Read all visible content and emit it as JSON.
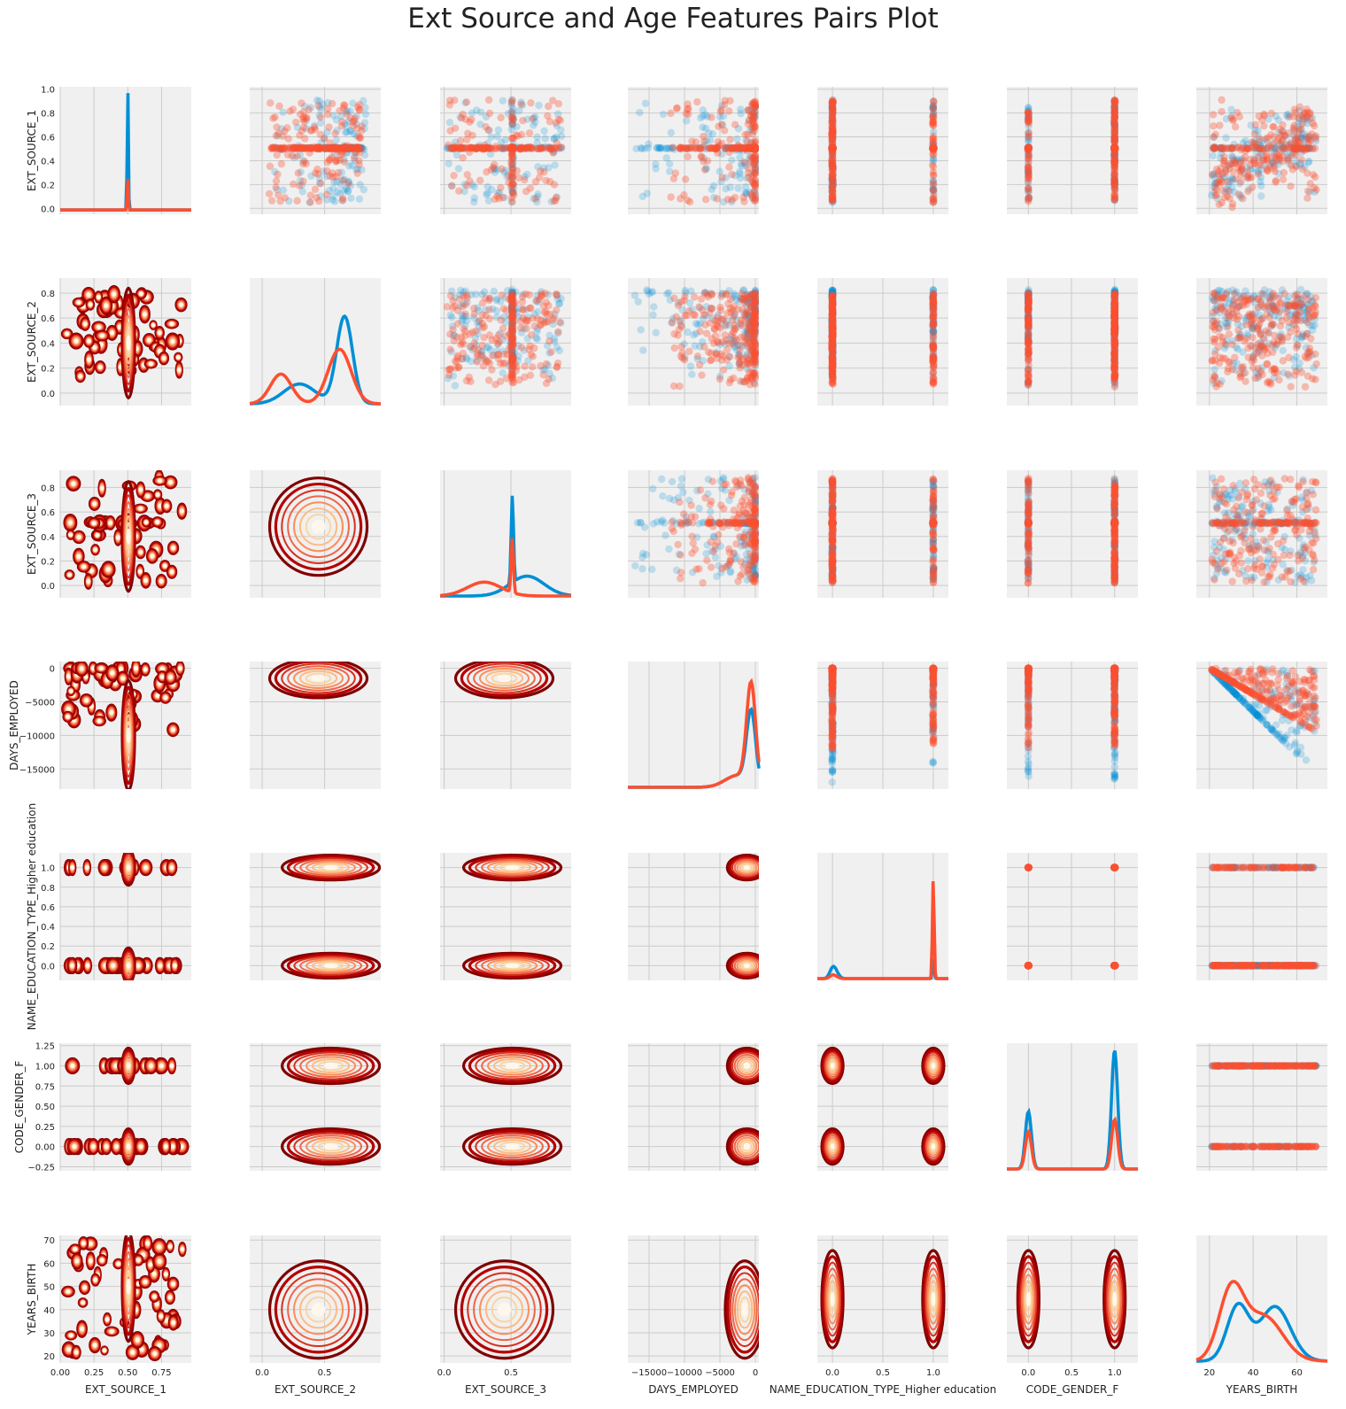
{
  "chart_data": {
    "type": "pairs",
    "title": "Ext Source and Age Features Pairs Plot",
    "variables": [
      "EXT_SOURCE_1",
      "EXT_SOURCE_2",
      "EXT_SOURCE_3",
      "DAYS_EMPLOYED",
      "NAME_EDUCATION_TYPE_Higher education",
      "CODE_GENDER_F",
      "YEARS_BIRTH"
    ],
    "upper": "scatter",
    "diagonal": "kde",
    "lower": "kde2d",
    "series": [
      {
        "name": "",
        "color": "#008fd5"
      },
      {
        "name": "",
        "color": "#fc4f30"
      }
    ],
    "lower_colormap": [
      "#7f0000",
      "#b30000",
      "#d7301f",
      "#ef6548",
      "#fc8d59",
      "#fdbb84",
      "#fdd49e",
      "#fff7ec"
    ],
    "y_axes": [
      {
        "var": "EXT_SOURCE_1",
        "range": [
          -0.05,
          1.02
        ],
        "ticks": [
          {
            "v": 0.0,
            "label": "0.0"
          },
          {
            "v": 0.2,
            "label": "0.2"
          },
          {
            "v": 0.4,
            "label": "0.4"
          },
          {
            "v": 0.6,
            "label": "0.6"
          },
          {
            "v": 0.8,
            "label": "0.8"
          },
          {
            "v": 1.0,
            "label": "1.0"
          }
        ]
      },
      {
        "var": "EXT_SOURCE_2",
        "range": [
          -0.1,
          0.92
        ],
        "ticks": [
          {
            "v": 0.0,
            "label": "0.0"
          },
          {
            "v": 0.2,
            "label": "0.2"
          },
          {
            "v": 0.4,
            "label": "0.4"
          },
          {
            "v": 0.6,
            "label": "0.6"
          },
          {
            "v": 0.8,
            "label": "0.8"
          }
        ]
      },
      {
        "var": "EXT_SOURCE_3",
        "range": [
          -0.1,
          0.94
        ],
        "ticks": [
          {
            "v": 0.0,
            "label": "0.0"
          },
          {
            "v": 0.2,
            "label": "0.2"
          },
          {
            "v": 0.4,
            "label": "0.4"
          },
          {
            "v": 0.6,
            "label": "0.6"
          },
          {
            "v": 0.8,
            "label": "0.8"
          }
        ]
      },
      {
        "var": "DAYS_EMPLOYED",
        "range": [
          -18000,
          1000
        ],
        "ticks": [
          {
            "v": 0,
            "label": "0"
          },
          {
            "v": -5000,
            "label": "−5000"
          },
          {
            "v": -10000,
            "label": "−10000"
          },
          {
            "v": -15000,
            "label": "−15000"
          }
        ]
      },
      {
        "var": "NAME_EDUCATION_TYPE_Higher education",
        "range": [
          -0.15,
          1.15
        ],
        "ticks": [
          {
            "v": 0.0,
            "label": "0.0"
          },
          {
            "v": 0.2,
            "label": "0.2"
          },
          {
            "v": 0.4,
            "label": "0.4"
          },
          {
            "v": 0.6,
            "label": "0.6"
          },
          {
            "v": 0.8,
            "label": "0.8"
          },
          {
            "v": 1.0,
            "label": "1.0"
          }
        ]
      },
      {
        "var": "CODE_GENDER_F",
        "range": [
          -0.3,
          1.28
        ],
        "ticks": [
          {
            "v": -0.25,
            "label": "−0.25"
          },
          {
            "v": 0.0,
            "label": "0.00"
          },
          {
            "v": 0.25,
            "label": "0.25"
          },
          {
            "v": 0.5,
            "label": "0.50"
          },
          {
            "v": 0.75,
            "label": "0.75"
          },
          {
            "v": 1.0,
            "label": "1.00"
          },
          {
            "v": 1.25,
            "label": "1.25"
          }
        ]
      },
      {
        "var": "YEARS_BIRTH",
        "range": [
          17,
          72
        ],
        "ticks": [
          {
            "v": 20,
            "label": "20"
          },
          {
            "v": 30,
            "label": "30"
          },
          {
            "v": 40,
            "label": "40"
          },
          {
            "v": 50,
            "label": "50"
          },
          {
            "v": 60,
            "label": "60"
          },
          {
            "v": 70,
            "label": "70"
          }
        ]
      }
    ],
    "x_axes": [
      {
        "var": "EXT_SOURCE_1",
        "range": [
          0.0,
          0.97
        ],
        "ticks": [
          {
            "v": 0.0,
            "label": "0.00"
          },
          {
            "v": 0.25,
            "label": "0.25"
          },
          {
            "v": 0.5,
            "label": "0.50"
          },
          {
            "v": 0.75,
            "label": "0.75"
          }
        ]
      },
      {
        "var": "EXT_SOURCE_2",
        "range": [
          -0.1,
          0.95
        ],
        "ticks": [
          {
            "v": 0.0,
            "label": "0.0"
          },
          {
            "v": 0.5,
            "label": "0.5"
          }
        ]
      },
      {
        "var": "EXT_SOURCE_3",
        "range": [
          -0.03,
          0.95
        ],
        "ticks": [
          {
            "v": 0.0,
            "label": "0.0"
          },
          {
            "v": 0.5,
            "label": "0.5"
          }
        ]
      },
      {
        "var": "DAYS_EMPLOYED",
        "range": [
          -18000,
          500
        ],
        "ticks": [
          {
            "v": -15000,
            "label": "−15000"
          },
          {
            "v": -10000,
            "label": "−10000"
          },
          {
            "v": -5000,
            "label": "−5000"
          },
          {
            "v": 0,
            "label": "0"
          }
        ]
      },
      {
        "var": "NAME_EDUCATION_TYPE_Higher education",
        "range": [
          -0.15,
          1.15
        ],
        "ticks": [
          {
            "v": 0.0,
            "label": "0.0"
          },
          {
            "v": 0.5,
            "label": "0.5"
          },
          {
            "v": 1.0,
            "label": "1.0"
          }
        ]
      },
      {
        "var": "CODE_GENDER_F",
        "range": [
          -0.25,
          1.27
        ],
        "ticks": [
          {
            "v": 0.0,
            "label": "0.0"
          },
          {
            "v": 0.5,
            "label": "0.5"
          },
          {
            "v": 1.0,
            "label": "1.0"
          }
        ]
      },
      {
        "var": "YEARS_BIRTH",
        "range": [
          14,
          74
        ],
        "ticks": [
          {
            "v": 20,
            "label": "20"
          },
          {
            "v": 40,
            "label": "40"
          },
          {
            "v": 60,
            "label": "60"
          }
        ]
      }
    ]
  }
}
